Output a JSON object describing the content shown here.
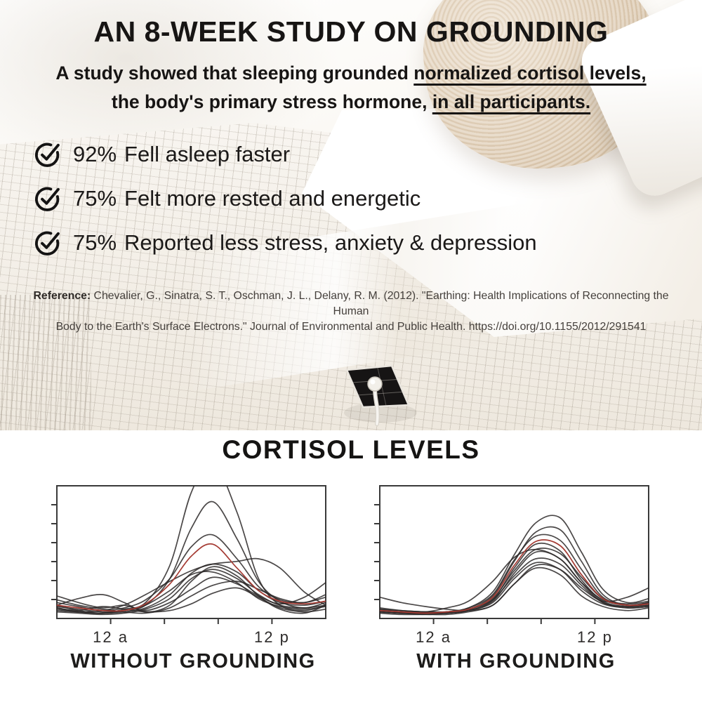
{
  "headline": "AN 8-WEEK STUDY ON GROUNDING",
  "subtitle": {
    "line1": [
      {
        "t": "A study showed that sleeping grounded ",
        "u": false
      },
      {
        "t": "normalized cortisol levels,",
        "u": true
      }
    ],
    "line2": [
      {
        "t": "the body's primary stress hormone, ",
        "u": false
      },
      {
        "t": "in all participants.",
        "u": true
      }
    ]
  },
  "bullets": [
    {
      "stat": "92%",
      "text": "Fell asleep faster"
    },
    {
      "stat": "75%",
      "text": "Felt more rested and energetic"
    },
    {
      "stat": "75%",
      "text": "Reported less stress, anxiety & depression"
    }
  ],
  "reference": {
    "label": "Reference:",
    "line1": " Chevalier, G., Sinatra, S. T., Oschman, J. L., Delany, R. M. (2012). \"Earthing: Health Implications of Reconnecting the Human",
    "line2": "Body to the Earth's Surface Electrons.\" Journal of Environmental and Public Health. https://doi.org/10.1155/2012/291541"
  },
  "charts": {
    "heading": "CORTISOL LEVELS",
    "left_caption": "WITHOUT GROUNDING",
    "right_caption": "WITH GROUNDING"
  },
  "icons": {
    "bullet": "check-circle"
  },
  "colors": {
    "text": "#1a1918",
    "chart_line": "#2c2828",
    "chart_red_line": "#a53b33",
    "axis": "#3a3a3a",
    "pillow_beige": "#ddcab1",
    "sheet_grid_line": "#92887a"
  },
  "chart_data": [
    {
      "id": "without",
      "type": "line",
      "title": "WITHOUT GROUNDING",
      "x_axis": {
        "ticks": [
          0.2,
          0.4,
          0.6,
          0.8
        ],
        "labels": [
          {
            "pos": 0.2,
            "text": "12 a"
          },
          {
            "pos": 0.8,
            "text": "12 p"
          }
        ]
      },
      "y_axis": {
        "tick_count": 6
      },
      "line_color": "#2c2828",
      "x_samples": [
        0,
        0.08,
        0.17,
        0.25,
        0.33,
        0.42,
        0.5,
        0.58,
        0.67,
        0.75,
        0.83,
        0.92,
        1
      ],
      "series": [
        {
          "name": "subject-1",
          "values": [
            0.1,
            0.06,
            0.04,
            0.07,
            0.12,
            0.4,
            0.95,
            1.18,
            0.8,
            0.3,
            0.1,
            0.06,
            0.1
          ]
        },
        {
          "name": "subject-2",
          "values": [
            0.08,
            0.05,
            0.04,
            0.06,
            0.1,
            0.3,
            0.68,
            0.88,
            0.6,
            0.28,
            0.13,
            0.08,
            0.12
          ]
        },
        {
          "name": "subject-3",
          "values": [
            0.12,
            0.09,
            0.06,
            0.08,
            0.14,
            0.3,
            0.54,
            0.63,
            0.45,
            0.24,
            0.14,
            0.12,
            0.16
          ]
        },
        {
          "name": "subject-4",
          "values": [
            0.06,
            0.05,
            0.06,
            0.1,
            0.18,
            0.28,
            0.36,
            0.41,
            0.43,
            0.45,
            0.38,
            0.2,
            0.1
          ]
        },
        {
          "name": "subject-5",
          "values": [
            0.1,
            0.15,
            0.18,
            0.12,
            0.05,
            0.1,
            0.28,
            0.39,
            0.32,
            0.17,
            0.07,
            0.04,
            0.1
          ]
        },
        {
          "name": "subject-6",
          "values": [
            0.07,
            0.05,
            0.04,
            0.05,
            0.08,
            0.18,
            0.34,
            0.41,
            0.35,
            0.21,
            0.12,
            0.1,
            0.13
          ]
        },
        {
          "name": "subject-7",
          "values": [
            0.05,
            0.04,
            0.03,
            0.04,
            0.07,
            0.15,
            0.3,
            0.37,
            0.3,
            0.18,
            0.1,
            0.08,
            0.1
          ]
        },
        {
          "name": "subject-8",
          "values": [
            0.09,
            0.07,
            0.05,
            0.06,
            0.1,
            0.21,
            0.33,
            0.35,
            0.27,
            0.15,
            0.09,
            0.07,
            0.09
          ]
        },
        {
          "name": "subject-9",
          "values": [
            0.14,
            0.1,
            0.07,
            0.05,
            0.04,
            0.08,
            0.17,
            0.25,
            0.28,
            0.22,
            0.15,
            0.12,
            0.18
          ]
        },
        {
          "name": "subject-10",
          "values": [
            0.17,
            0.12,
            0.08,
            0.1,
            0.06,
            0.12,
            0.22,
            0.31,
            0.26,
            0.17,
            0.11,
            0.16,
            0.27
          ]
        },
        {
          "name": "subject-11",
          "values": [
            0.08,
            0.06,
            0.09,
            0.07,
            0.05,
            0.06,
            0.11,
            0.19,
            0.23,
            0.16,
            0.08,
            0.05,
            0.07
          ]
        },
        {
          "name": "highlighted-red",
          "color": "#a53b33",
          "values": [
            0.1,
            0.08,
            0.06,
            0.06,
            0.11,
            0.26,
            0.47,
            0.56,
            0.38,
            0.21,
            0.13,
            0.11,
            0.13
          ]
        }
      ]
    },
    {
      "id": "with",
      "type": "line",
      "title": "WITH GROUNDING",
      "x_axis": {
        "ticks": [
          0.2,
          0.4,
          0.6,
          0.8
        ],
        "labels": [
          {
            "pos": 0.2,
            "text": "12 a"
          },
          {
            "pos": 0.8,
            "text": "12 p"
          }
        ]
      },
      "y_axis": {
        "tick_count": 6
      },
      "line_color": "#2c2828",
      "x_samples": [
        0,
        0.08,
        0.17,
        0.25,
        0.33,
        0.42,
        0.5,
        0.58,
        0.67,
        0.75,
        0.83,
        0.92,
        1
      ],
      "series": [
        {
          "name": "subject-1",
          "values": [
            0.06,
            0.05,
            0.04,
            0.05,
            0.08,
            0.2,
            0.48,
            0.72,
            0.76,
            0.5,
            0.22,
            0.12,
            0.15
          ]
        },
        {
          "name": "subject-2",
          "values": [
            0.05,
            0.04,
            0.04,
            0.05,
            0.07,
            0.17,
            0.43,
            0.65,
            0.67,
            0.43,
            0.18,
            0.1,
            0.12
          ]
        },
        {
          "name": "subject-3",
          "values": [
            0.07,
            0.05,
            0.04,
            0.05,
            0.08,
            0.18,
            0.44,
            0.62,
            0.59,
            0.37,
            0.16,
            0.1,
            0.11
          ]
        },
        {
          "name": "subject-4",
          "values": [
            0.05,
            0.04,
            0.03,
            0.04,
            0.06,
            0.14,
            0.38,
            0.56,
            0.51,
            0.29,
            0.13,
            0.09,
            0.1
          ]
        },
        {
          "name": "subject-5",
          "values": [
            0.06,
            0.05,
            0.05,
            0.08,
            0.13,
            0.28,
            0.46,
            0.52,
            0.45,
            0.27,
            0.14,
            0.1,
            0.12
          ]
        },
        {
          "name": "subject-6",
          "values": [
            0.08,
            0.06,
            0.05,
            0.05,
            0.07,
            0.15,
            0.36,
            0.52,
            0.49,
            0.31,
            0.15,
            0.11,
            0.13
          ]
        },
        {
          "name": "subject-7",
          "values": [
            0.05,
            0.04,
            0.04,
            0.04,
            0.06,
            0.13,
            0.34,
            0.5,
            0.45,
            0.27,
            0.12,
            0.08,
            0.09
          ]
        },
        {
          "name": "subject-8",
          "values": [
            0.07,
            0.06,
            0.05,
            0.05,
            0.07,
            0.14,
            0.32,
            0.45,
            0.41,
            0.25,
            0.12,
            0.09,
            0.1
          ]
        },
        {
          "name": "subject-9",
          "values": [
            0.06,
            0.05,
            0.04,
            0.04,
            0.06,
            0.12,
            0.3,
            0.42,
            0.37,
            0.21,
            0.11,
            0.08,
            0.09
          ]
        },
        {
          "name": "subject-10",
          "values": [
            0.16,
            0.12,
            0.09,
            0.07,
            0.06,
            0.1,
            0.26,
            0.4,
            0.37,
            0.23,
            0.13,
            0.16,
            0.23
          ]
        },
        {
          "name": "subject-11",
          "values": [
            0.04,
            0.03,
            0.03,
            0.03,
            0.05,
            0.1,
            0.26,
            0.38,
            0.33,
            0.17,
            0.09,
            0.06,
            0.08
          ]
        },
        {
          "name": "highlighted-red",
          "color": "#a53b33",
          "values": [
            0.06,
            0.05,
            0.04,
            0.05,
            0.07,
            0.16,
            0.4,
            0.58,
            0.55,
            0.33,
            0.15,
            0.1,
            0.11
          ]
        }
      ]
    }
  ]
}
